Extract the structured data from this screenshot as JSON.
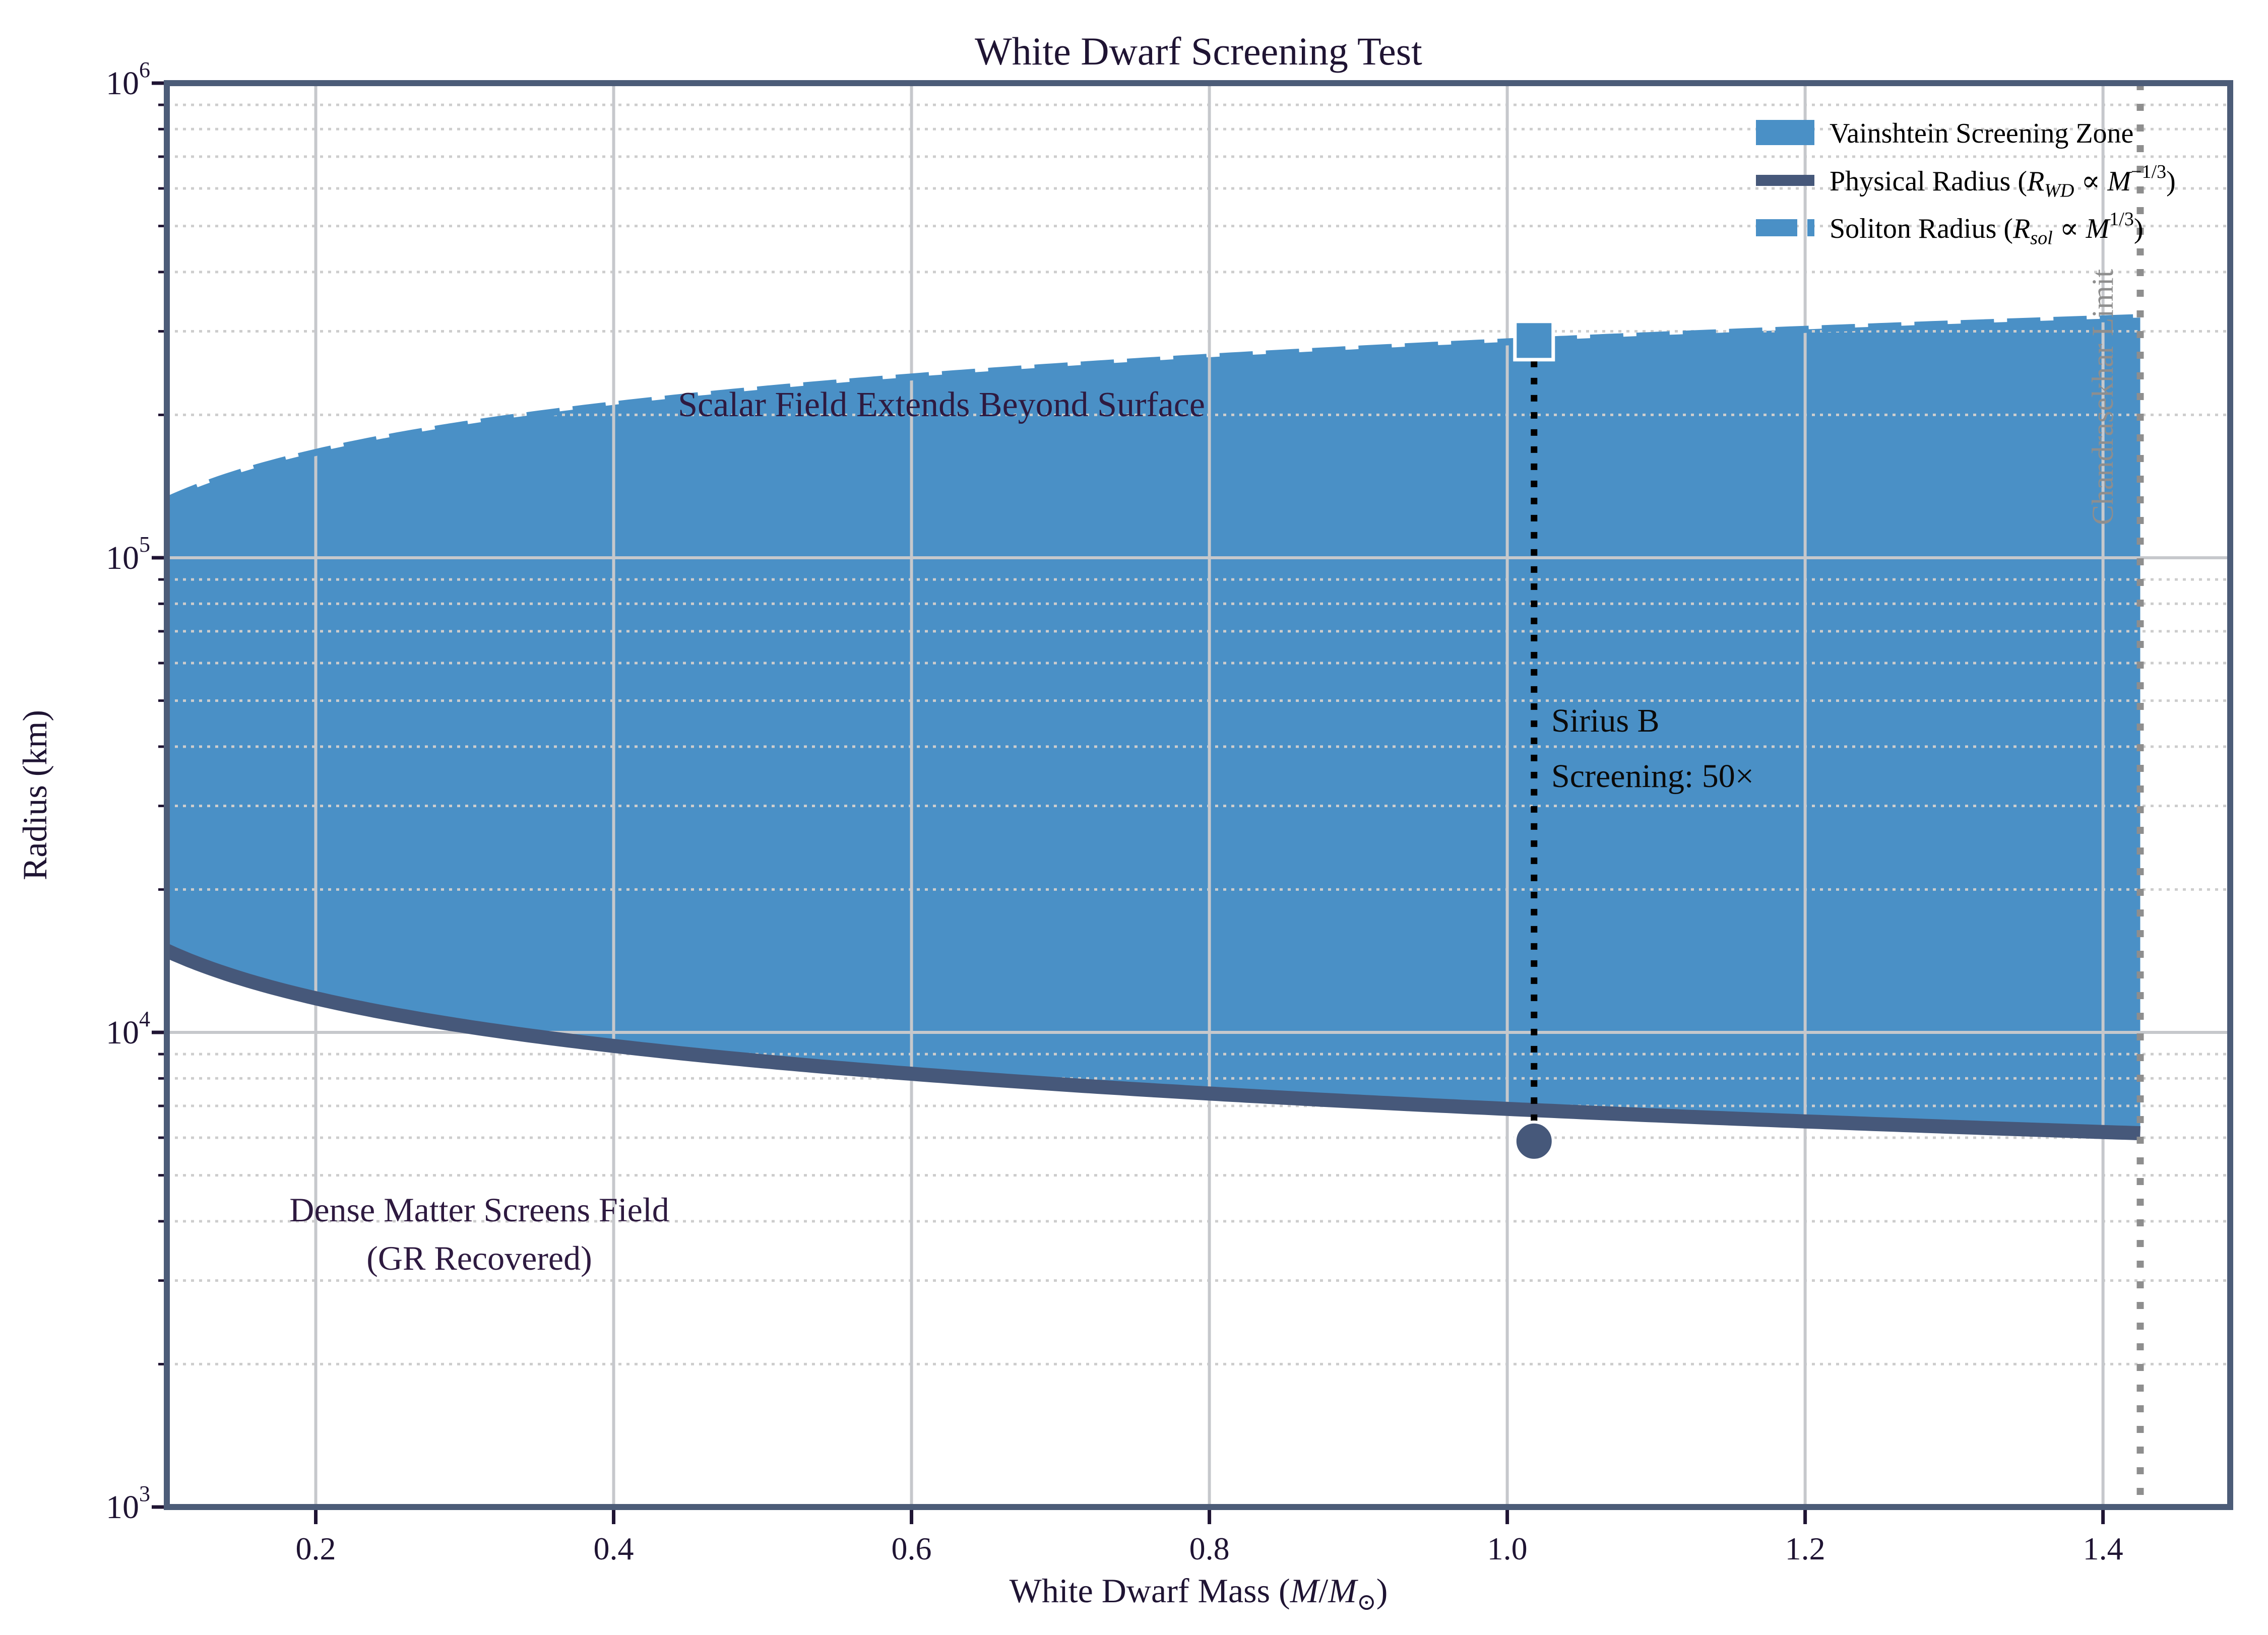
{
  "title": "White Dwarf Screening Test",
  "axes": {
    "y_label": "Radius (km)",
    "x_label_text": "White Dwarf Mass (M/M⊙)",
    "x_label_parts": [
      [
        "n",
        "White Dwarf Mass ("
      ],
      [
        "i",
        "M"
      ],
      [
        "n",
        "/"
      ],
      [
        "i",
        "M"
      ],
      [
        "sub",
        "⊙"
      ],
      [
        "n",
        ")"
      ]
    ],
    "x_ticks": [
      0.2,
      0.4,
      0.6,
      0.8,
      1.0,
      1.2,
      1.4
    ],
    "x_tick_labels": [
      "0.2",
      "0.4",
      "0.6",
      "0.8",
      "1.0",
      "1.2",
      "1.4"
    ],
    "y_tick_exponents": [
      3,
      4,
      5,
      6
    ],
    "x_range": [
      0.1,
      1.4854
    ],
    "y_range_log10": [
      3,
      6
    ]
  },
  "chart_data": {
    "type": "area",
    "title": "White Dwarf Screening Test",
    "xlabel": "White Dwarf Mass (M/M⊙)",
    "ylabel": "Radius (km)",
    "x_axis": {
      "scale": "linear",
      "range": [
        0.1,
        1.4854
      ],
      "ticks": [
        0.2,
        0.4,
        0.6,
        0.8,
        1.0,
        1.2,
        1.4
      ]
    },
    "y_axis": {
      "scale": "log",
      "range_km": [
        1000,
        1000000
      ],
      "ticks_km": [
        1000,
        10000,
        100000,
        1000000
      ]
    },
    "grid": {
      "major": "solid",
      "minor": "dotted"
    },
    "legend_position": "upper right",
    "x_masses": [
      0.1,
      0.2,
      0.3,
      0.4,
      0.5,
      0.6,
      0.7,
      0.8,
      0.9,
      1.0,
      1.1,
      1.2,
      1.3,
      1.4,
      1.425
    ],
    "series": [
      {
        "name": "Physical Radius (R_WD ∝ M^-1/3)",
        "law": "R = 6900 * M^(-1/3) km",
        "values_km": [
          14870,
          11800,
          10310,
          9370,
          8690,
          8180,
          7770,
          7430,
          7150,
          6900,
          6680,
          6490,
          6320,
          6170,
          6130
        ]
      },
      {
        "name": "Soliton Radius (R_sol ∝ M^1/3)",
        "law": "R = 285000 * M^(1/3) km",
        "values_km": [
          132300,
          166700,
          190800,
          210000,
          226200,
          240400,
          253100,
          264600,
          275200,
          285000,
          294200,
          302900,
          311100,
          318800,
          320700
        ]
      }
    ],
    "fill_between": {
      "name": "Vainshtein Screening Zone",
      "from": "Physical Radius",
      "to": "Soliton Radius",
      "mass_range": [
        0.1,
        1.425
      ]
    },
    "chandrasekhar_line": {
      "mass": 1.425,
      "style": "dotted",
      "label": "Chandrasekhar Limit"
    },
    "sirius_b": {
      "mass": 1.018,
      "physical_radius_km": 5900,
      "soliton_radius_km": 286900,
      "screening_factor": "50×"
    }
  },
  "legend": {
    "items": [
      {
        "swatch": "patch",
        "label_text": "Vainshtein Screening Zone",
        "label_parts": [
          [
            "n",
            "Vainshtein Screening Zone"
          ]
        ]
      },
      {
        "swatch": "line",
        "label_text": "Physical Radius (R_WD ∝ M⁻¹ᐟ³)",
        "label_parts": [
          [
            "n",
            "Physical Radius ("
          ],
          [
            "i",
            "R"
          ],
          [
            "sub",
            "WD"
          ],
          [
            "n",
            " ∝ "
          ],
          [
            "i",
            "M"
          ],
          [
            "sup",
            "−1/3"
          ],
          [
            "n",
            ")"
          ]
        ]
      },
      {
        "swatch": "dashed",
        "label_text": "Soliton Radius (R_sol ∝ M¹ᐟ³)",
        "label_parts": [
          [
            "n",
            "Soliton Radius ("
          ],
          [
            "i",
            "R"
          ],
          [
            "sub",
            "sol"
          ],
          [
            "n",
            " ∝ "
          ],
          [
            "i",
            "M"
          ],
          [
            "sup",
            "1/3"
          ],
          [
            "n",
            ")"
          ]
        ]
      }
    ]
  },
  "annotations": {
    "scalar_field": {
      "text": "Scalar Field Extends Beyond Surface",
      "mass": 0.62,
      "radius_km": 210000
    },
    "dense_matter": {
      "line1": "Dense Matter Screens Field",
      "line2": "(GR Recovered)",
      "mass": 0.31,
      "radius_km": 3800
    },
    "sirius": {
      "line1": "Sirius B",
      "line2": "Screening: 50×",
      "mass": 1.03,
      "radius_km": 47000
    },
    "chandrasekhar": {
      "text": "Chandrasekhar Limit",
      "mass": 1.425
    }
  },
  "colors": {
    "fill_blue": "#4A90C6",
    "physical_curve": "#46587A",
    "spine": "#4C5C78",
    "grid_major": "#C6C8CC",
    "grid_minor": "#CDCDCD",
    "axis_text": "#1F1433",
    "annotation_purple": "#2E1A40",
    "annotation_black": "#0A0A0A",
    "chandra_gray": "#8E8E8E",
    "marker_edge": "#FFFFFF",
    "connector_black": "#000000"
  }
}
